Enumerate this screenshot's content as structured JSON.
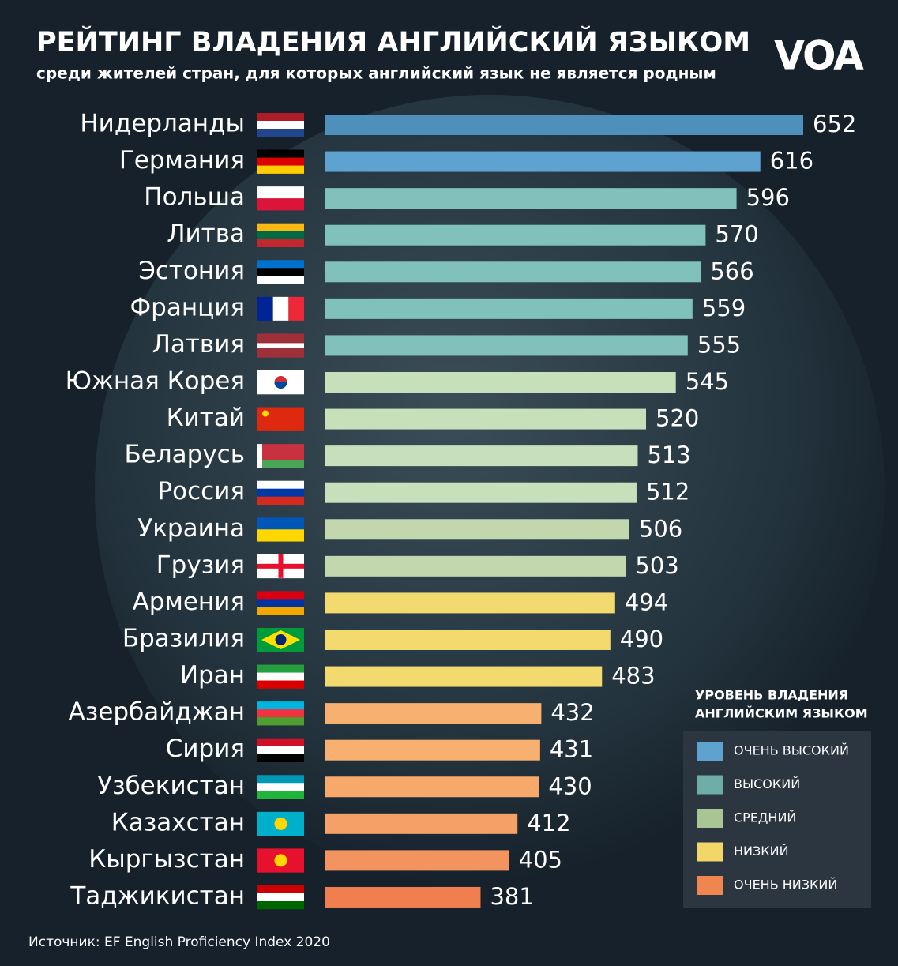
{
  "chart_data": {
    "type": "bar",
    "orientation": "horizontal",
    "title": "РЕЙТИНГ ВЛАДЕНИЯ АНГЛИЙСКИЙ ЯЗЫКОМ",
    "subtitle": "среди жителей стран, для которых английский язык не является родным",
    "logo": "VOA",
    "categories": [
      "Нидерланды",
      "Германия",
      "Польша",
      "Литва",
      "Эстония",
      "Франция",
      "Латвия",
      "Южная Корея",
      "Китай",
      "Беларусь",
      "Россия",
      "Украина",
      "Грузия",
      "Армения",
      "Бразилия",
      "Иран",
      "Азербайджан",
      "Сирия",
      "Узбекистан",
      "Казахстан",
      "Кыргызстан",
      "Таджикистан"
    ],
    "values": [
      652,
      616,
      596,
      570,
      566,
      559,
      555,
      545,
      520,
      513,
      512,
      506,
      503,
      494,
      490,
      483,
      432,
      431,
      430,
      412,
      405,
      381
    ],
    "colors": [
      "#4f8fbc",
      "#5ea3cf",
      "#80c2bb",
      "#80c2bb",
      "#80c2bb",
      "#80c2bb",
      "#80c2bb",
      "#c8dfbb",
      "#c8dfbb",
      "#c8dfbb",
      "#c8dfbb",
      "#c2d7ae",
      "#c2d7ae",
      "#f3da6e",
      "#f3da6e",
      "#f3da6e",
      "#f8b070",
      "#f8b070",
      "#f6a96b",
      "#f5a067",
      "#f29360",
      "#f07f50"
    ],
    "xlim": [
      250,
      652
    ],
    "legend": {
      "title": [
        "УРОВЕНЬ ВЛАДЕНИЯ",
        "АНГЛИЙСКИМ ЯЗЫКОМ"
      ],
      "items": [
        {
          "name": "ОЧЕНЬ ВЫСОКИЙ",
          "color": "#5ea3cf"
        },
        {
          "name": "ВЫСОКИЙ",
          "color": "#6faea8"
        },
        {
          "name": "СРЕДНИЙ",
          "color": "#a9c594"
        },
        {
          "name": "НИЗКИЙ",
          "color": "#f3d66a"
        },
        {
          "name": "ОЧЕНЬ НИЗКИЙ",
          "color": "#f0864f"
        }
      ]
    },
    "source": "Источник: EF English Proficiency Index 2020"
  }
}
